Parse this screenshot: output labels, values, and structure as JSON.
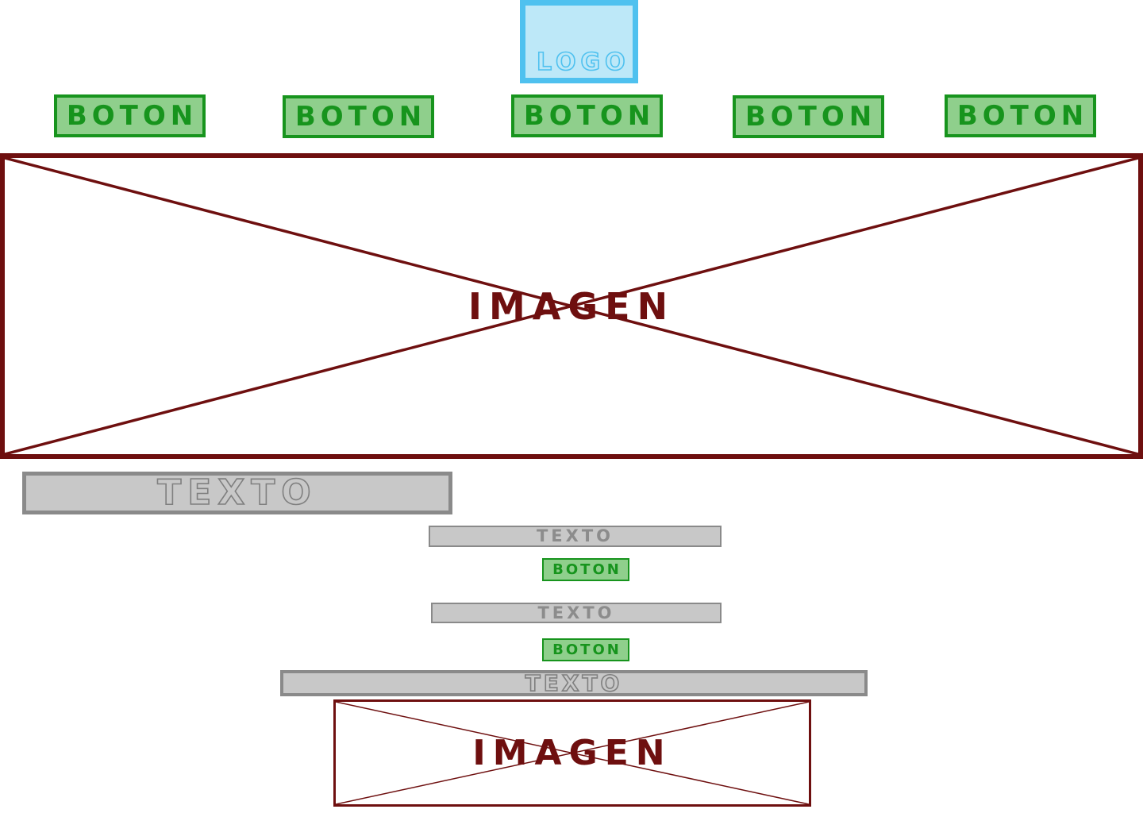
{
  "logo": {
    "label": "LOGO"
  },
  "nav": {
    "buttons": [
      "BOTON",
      "BOTON",
      "BOTON",
      "BOTON",
      "BOTON"
    ]
  },
  "hero": {
    "label": "IMAGEN"
  },
  "content": {
    "title": "TEXTO",
    "blocks": [
      {
        "text": "TEXTO",
        "button": "BOTON"
      },
      {
        "text": "TEXTO",
        "button": "BOTON"
      }
    ],
    "wide_text": "TEXTO",
    "image_label": "IMAGEN"
  },
  "colors": {
    "logo_fill": "#bde8f8",
    "logo_border": "#4fc1ef",
    "button_fill": "#8fcf8c",
    "button_border": "#17941d",
    "image_border": "#6e0f0f",
    "text_fill": "#c8c8c8",
    "text_border": "#8a8a8a"
  }
}
